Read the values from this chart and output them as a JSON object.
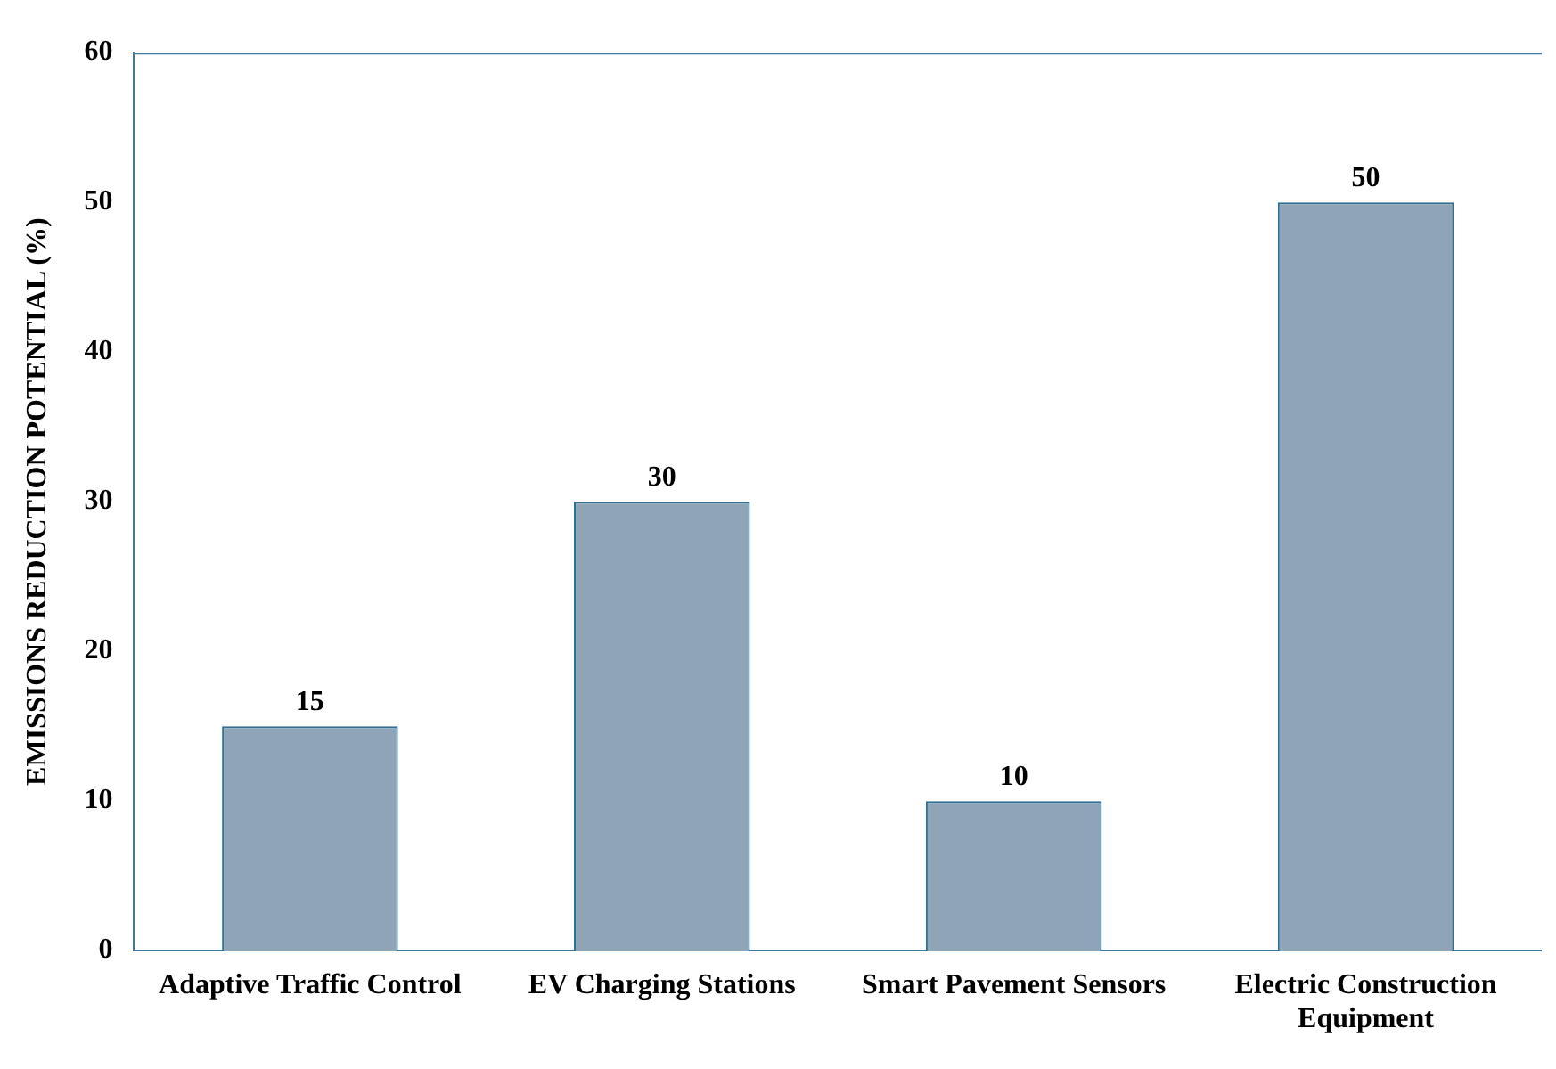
{
  "chart_data": {
    "type": "bar",
    "ylabel": "EMISSIONS REDUCTION POTENTIAL (%)",
    "categories": [
      "Adaptive Traffic Control",
      "EV Charging Stations",
      "Smart Pavement Sensors",
      "Electric Construction Equipment"
    ],
    "values": [
      15,
      30,
      10,
      50
    ],
    "color": "#8fa4b7",
    "ylim": [
      0,
      60
    ],
    "yticks": [
      0,
      10,
      20,
      30,
      40,
      50,
      60
    ],
    "grid": false,
    "data_labels": true,
    "legend": false
  }
}
